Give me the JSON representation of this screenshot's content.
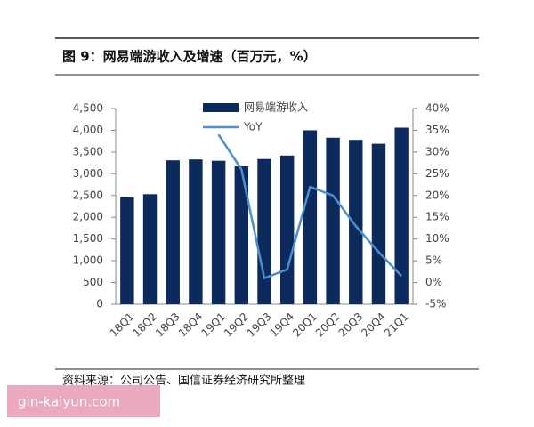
{
  "chart_data": {
    "type": "bar-line",
    "title": "图 9：网易端游收入及增速（百万元，%）",
    "source": "资料来源：公司公告、国信证券经济研究所整理",
    "watermark": "gin-kaiyun.com",
    "categories": [
      "18Q1",
      "18Q2",
      "18Q3",
      "18Q4",
      "19Q1",
      "19Q2",
      "19Q3",
      "19Q4",
      "20Q1",
      "20Q2",
      "20Q3",
      "20Q4",
      "21Q1"
    ],
    "series": [
      {
        "name": "网易端游收入",
        "type": "bar",
        "color": "#0c2b5c",
        "values": [
          2460,
          2530,
          3310,
          3330,
          3300,
          3170,
          3340,
          3420,
          4000,
          3830,
          3780,
          3690,
          4060
        ]
      },
      {
        "name": "YoY",
        "type": "line",
        "axis": "y2",
        "color": "#4a8fd0",
        "values": [
          null,
          null,
          null,
          null,
          34,
          26,
          1,
          3,
          22,
          20,
          13,
          7,
          1.5
        ]
      }
    ],
    "ylim": [
      0,
      4500
    ],
    "yticks": [
      0,
      500,
      {
        "value": 1000,
        "label": "1,000"
      },
      {
        "value": 1500,
        "label": "1,500"
      },
      {
        "value": 2000,
        "label": "2,000"
      },
      {
        "value": 2500,
        "label": "2,500"
      },
      {
        "value": 3000,
        "label": "3,000"
      },
      {
        "value": 3500,
        "label": "3,500"
      },
      {
        "value": 4000,
        "label": "4,000"
      },
      {
        "value": 4500,
        "label": "4,500"
      }
    ],
    "y2lim": [
      -5,
      40
    ],
    "y2ticks": [
      {
        "value": -5,
        "label": "-5%"
      },
      {
        "value": 0,
        "label": "0%"
      },
      {
        "value": 5,
        "label": "5%"
      },
      {
        "value": 10,
        "label": "10%"
      },
      {
        "value": 15,
        "label": "15%"
      },
      {
        "value": 20,
        "label": "20%"
      },
      {
        "value": 25,
        "label": "25%"
      },
      {
        "value": 30,
        "label": "30%"
      },
      {
        "value": 35,
        "label": "35%"
      },
      {
        "value": 40,
        "label": "40%"
      }
    ]
  }
}
